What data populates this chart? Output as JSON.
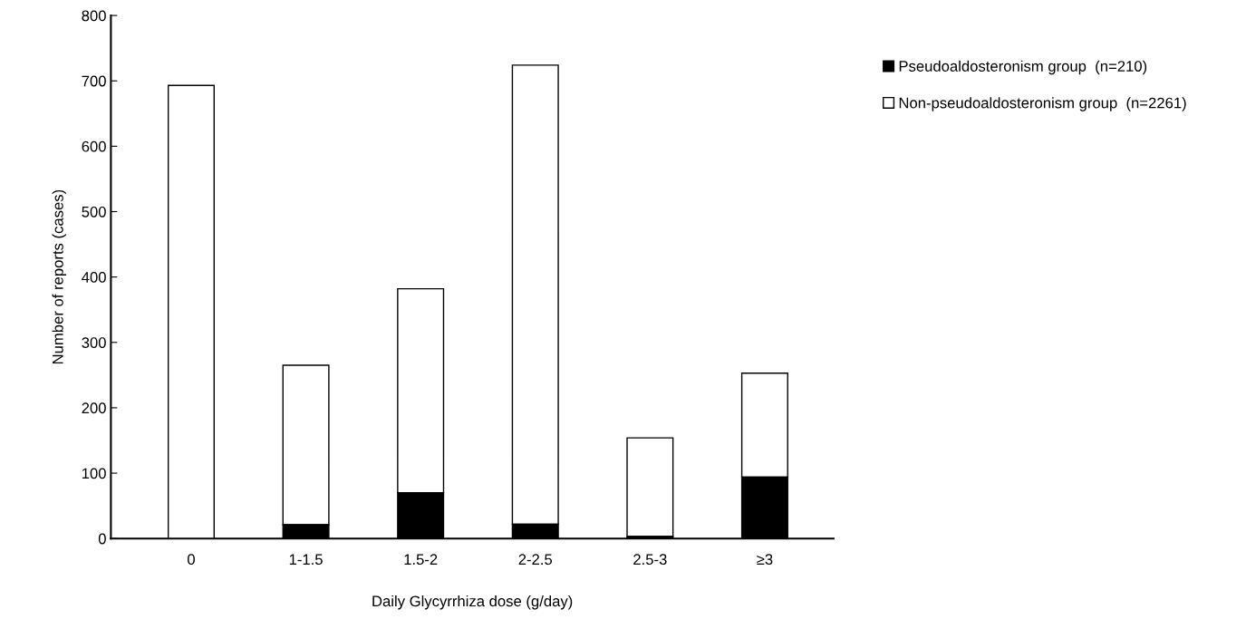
{
  "chart_data": {
    "type": "bar",
    "stacked": true,
    "xlabel": "Daily Glycyrrhiza dose (g/day)",
    "ylabel": "Number of reports (cases)",
    "categories": [
      "0",
      "1-1.5",
      "1.5-2",
      "2-2.5",
      "2.5-3",
      "≥3"
    ],
    "series": [
      {
        "name": "Pseudoaldosteronism group  (n=210)",
        "color": "#000000",
        "values": [
          0,
          21,
          70,
          22,
          3,
          94
        ]
      },
      {
        "name": "Non-pseudoaldosteronism group  (n=2261)",
        "color": "#ffffff",
        "values": [
          693,
          244,
          312,
          702,
          151,
          159
        ]
      }
    ],
    "ylim": [
      0,
      800
    ],
    "yticks": [
      0,
      100,
      200,
      300,
      400,
      500,
      600,
      700,
      800
    ],
    "grid": false,
    "legend": "top right"
  }
}
